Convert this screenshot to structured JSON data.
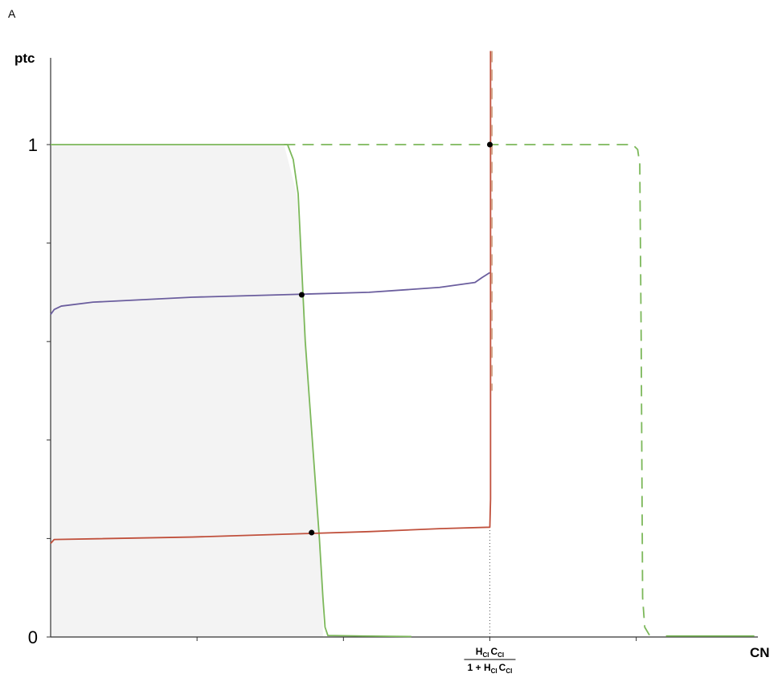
{
  "panel_label": "A",
  "chart_data": {
    "type": "line",
    "title": "",
    "xlabel": "CN",
    "ylabel": "ptc",
    "xlim": [
      0,
      1
    ],
    "ylim": [
      0,
      1
    ],
    "grid": false,
    "legend": "none",
    "yticks": [
      {
        "value": 0,
        "label": "0"
      },
      {
        "value": 0.2,
        "label": ""
      },
      {
        "value": 0.4,
        "label": ""
      },
      {
        "value": 0.6,
        "label": ""
      },
      {
        "value": 0.8,
        "label": ""
      },
      {
        "value": 1,
        "label": "1"
      }
    ],
    "xticks": [
      {
        "value": 0.207,
        "label": ""
      },
      {
        "value": 0.414,
        "label": ""
      },
      {
        "value": 0.621,
        "label": ""
      },
      {
        "value": 0.828,
        "label": ""
      }
    ],
    "special_x_label": {
      "value": 0.621,
      "numerator": [
        "H",
        "CI",
        "C",
        "CI"
      ],
      "denominator_prefix": "1 + ",
      "denominator": [
        "H",
        "CI",
        "C",
        "CI"
      ]
    },
    "shaded_region": {
      "color": "#f3f3f3",
      "points": [
        [
          0,
          1
        ],
        [
          0.33,
          1
        ],
        [
          0.348,
          0.9
        ],
        [
          0.385,
          0.08
        ],
        [
          0.385,
          0
        ],
        [
          0,
          0
        ]
      ]
    },
    "series": [
      {
        "color": "#7cb85a",
        "dash": "solid",
        "points": [
          [
            0,
            1
          ],
          [
            0.335,
            1
          ],
          [
            0.343,
            0.97
          ],
          [
            0.35,
            0.9
          ],
          [
            0.36,
            0.6
          ],
          [
            0.37,
            0.4
          ],
          [
            0.38,
            0.2
          ],
          [
            0.385,
            0.08
          ],
          [
            0.388,
            0.02
          ],
          [
            0.392,
            0.003
          ],
          [
            0.44,
            0.002
          ],
          [
            0.51,
            0.001
          ]
        ]
      },
      {
        "color": "#7cb85a",
        "dash": "dashed",
        "points": [
          [
            0.33,
            1
          ],
          [
            0.823,
            1
          ],
          [
            0.83,
            0.99
          ],
          [
            0.833,
            0.96
          ],
          [
            0.835,
            0.6
          ],
          [
            0.837,
            0.08
          ],
          [
            0.84,
            0.02
          ],
          [
            0.847,
            0.003
          ]
        ]
      },
      {
        "color": "#7cb85a",
        "dash": "solid",
        "points": [
          [
            0.87,
            0.002
          ],
          [
            0.995,
            0.002
          ]
        ]
      },
      {
        "color": "#6b5e9e",
        "dash": "solid",
        "points": [
          [
            0,
            0.655
          ],
          [
            0.005,
            0.665
          ],
          [
            0.015,
            0.672
          ],
          [
            0.06,
            0.68
          ],
          [
            0.2,
            0.69
          ],
          [
            0.35,
            0.696
          ],
          [
            0.45,
            0.7
          ],
          [
            0.55,
            0.71
          ],
          [
            0.6,
            0.72
          ],
          [
            0.61,
            0.73
          ],
          [
            0.621,
            0.74
          ]
        ]
      },
      {
        "color": "#c0503c",
        "dash": "solid",
        "points": [
          [
            0,
            0.19
          ],
          [
            0.005,
            0.198
          ],
          [
            0.2,
            0.203
          ],
          [
            0.36,
            0.21
          ],
          [
            0.45,
            0.214
          ],
          [
            0.55,
            0.22
          ],
          [
            0.621,
            0.223
          ],
          [
            0.622,
            0.28
          ],
          [
            0.622,
            0.8
          ],
          [
            0.622,
            1.19
          ]
        ]
      },
      {
        "color": "#d2a387",
        "dash": "dashed",
        "points": [
          [
            0.624,
            1.19
          ],
          [
            0.624,
            1.08
          ],
          [
            0.624,
            0.9
          ],
          [
            0.624,
            0.5
          ]
        ]
      }
    ],
    "intersection_points": [
      [
        0.621,
        1
      ],
      [
        0.355,
        0.695
      ],
      [
        0.369,
        0.212
      ]
    ],
    "dotted_guide": {
      "x": 0.621,
      "y_from": 0,
      "y_to": 0.223
    }
  }
}
